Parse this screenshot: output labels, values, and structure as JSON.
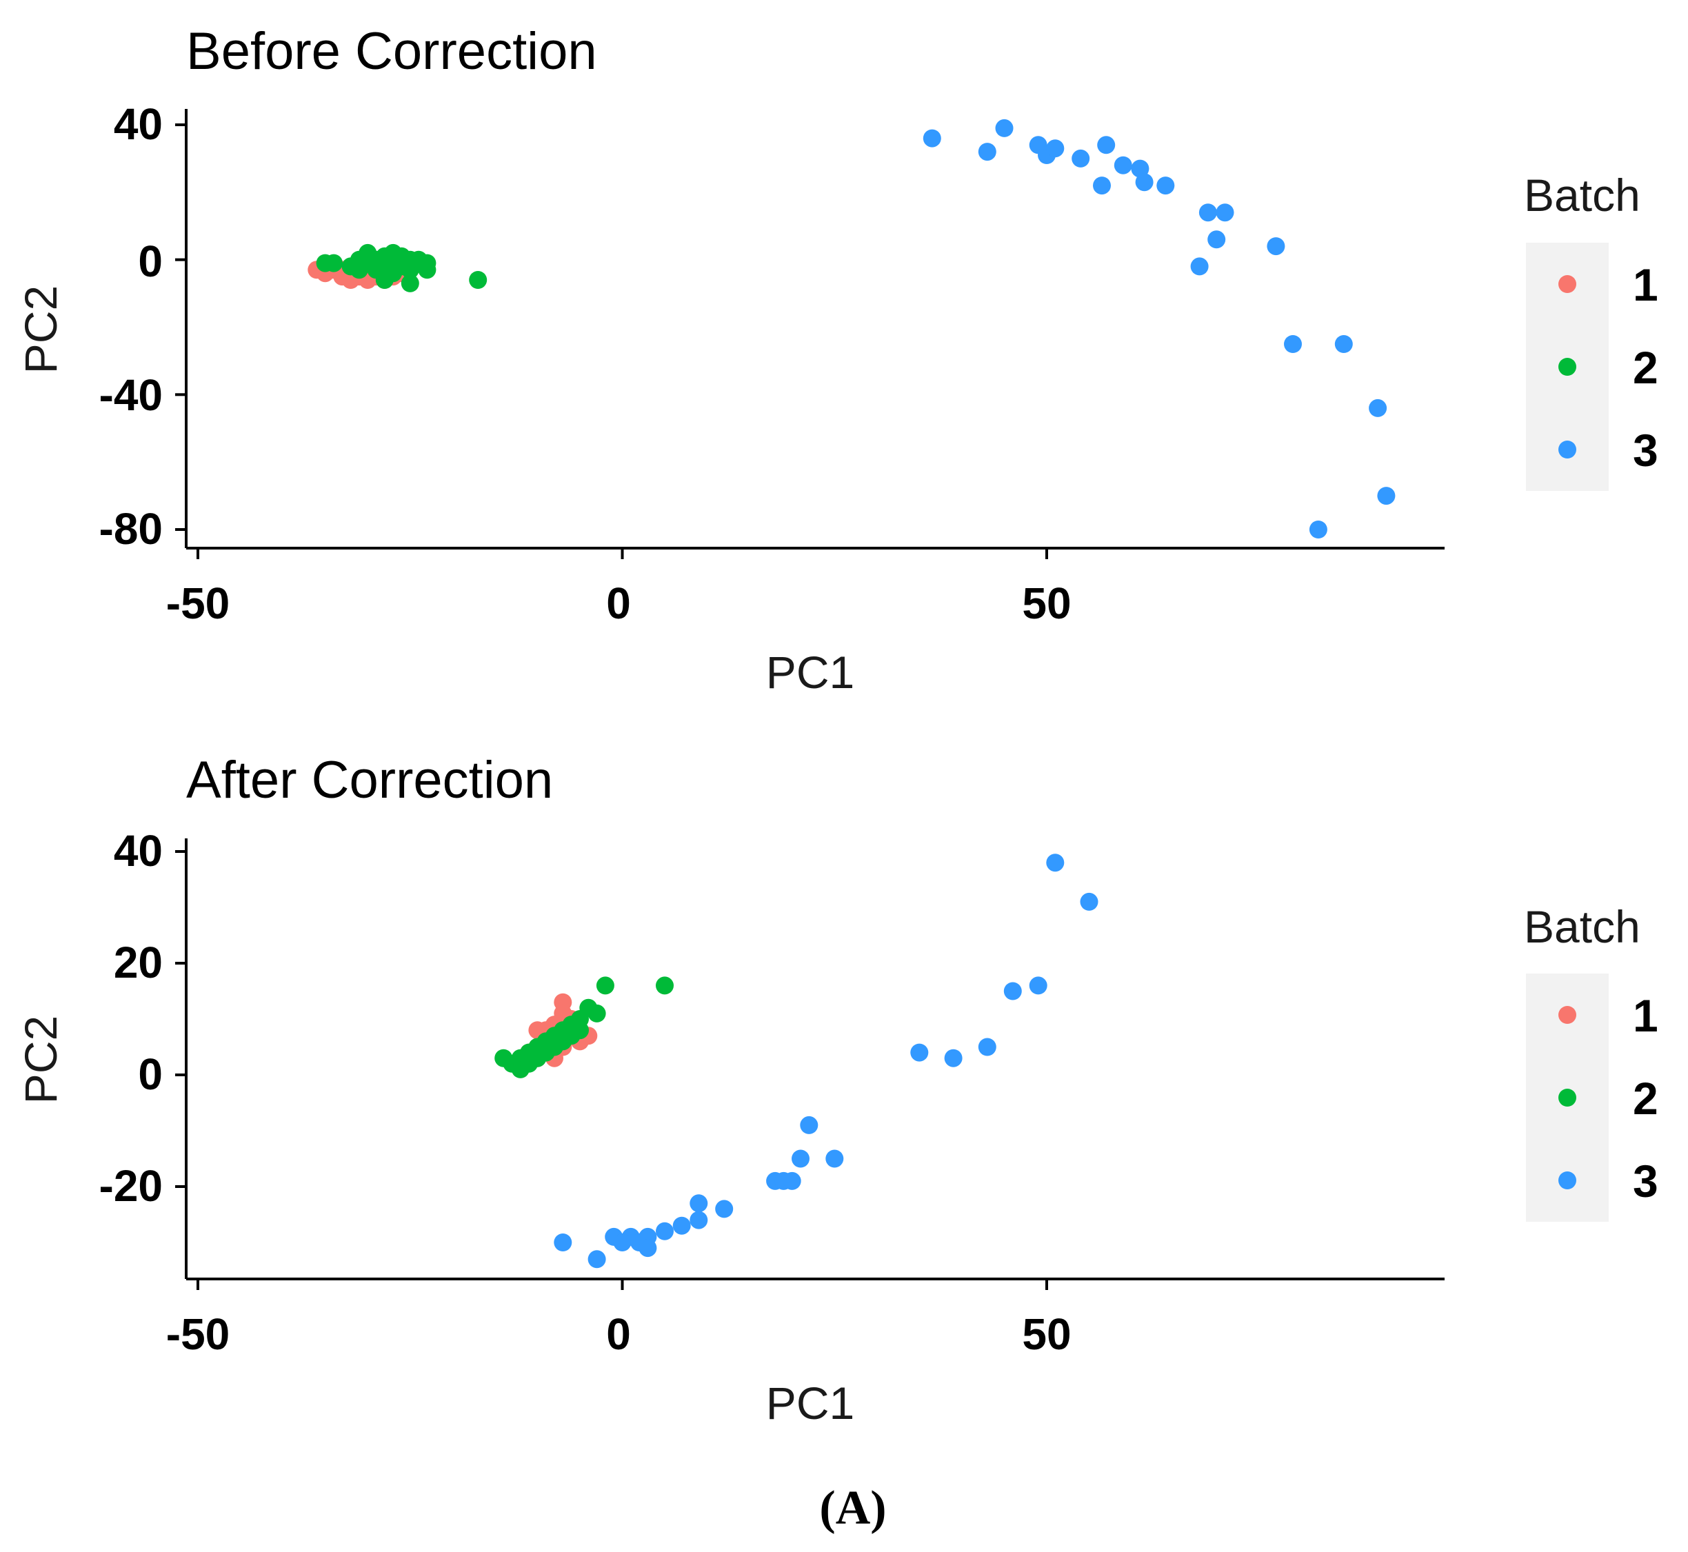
{
  "chart_data": [
    {
      "type": "scatter",
      "title": "Before Correction",
      "xlabel": "PC1",
      "ylabel": "PC2",
      "xlim": [
        -52,
        97
      ],
      "ylim": [
        -85,
        45
      ],
      "xticks": [
        -50,
        0,
        50
      ],
      "xtick_labels": [
        "-50",
        "0",
        "50"
      ],
      "yticks": [
        40,
        0,
        -40,
        -80
      ],
      "ytick_labels": [
        "40",
        "0",
        "-40",
        "-80"
      ],
      "grid": false,
      "legend": {
        "title": "Batch",
        "position": "right",
        "entries": [
          "1",
          "2",
          "3"
        ]
      },
      "series": [
        {
          "name": "1",
          "color": "#F8766D",
          "points": [
            [
              -36,
              -3
            ],
            [
              -35,
              -4
            ],
            [
              -34,
              -3
            ],
            [
              -33,
              -5
            ],
            [
              -33,
              -3
            ],
            [
              -32,
              -6
            ],
            [
              -32,
              -4
            ],
            [
              -31,
              -2
            ],
            [
              -31,
              -5
            ],
            [
              -30,
              -4
            ],
            [
              -30,
              -6
            ],
            [
              -29,
              -3
            ],
            [
              -29,
              -5
            ],
            [
              -28,
              -4
            ],
            [
              -28,
              -6
            ],
            [
              -27,
              -3
            ],
            [
              -27,
              -5
            ],
            [
              -26,
              -4
            ]
          ]
        },
        {
          "name": "2",
          "color": "#00BA38",
          "points": [
            [
              -35,
              -1
            ],
            [
              -34,
              -1
            ],
            [
              -32,
              -2
            ],
            [
              -31,
              0
            ],
            [
              -31,
              -3
            ],
            [
              -30,
              2
            ],
            [
              -30,
              -1
            ],
            [
              -29,
              0
            ],
            [
              -29,
              -3
            ],
            [
              -28,
              1
            ],
            [
              -28,
              -2
            ],
            [
              -28,
              -6
            ],
            [
              -27,
              0
            ],
            [
              -27,
              2
            ],
            [
              -27,
              -4
            ],
            [
              -26,
              1
            ],
            [
              -26,
              -2
            ],
            [
              -25,
              0
            ],
            [
              -25,
              -3
            ],
            [
              -24,
              0
            ],
            [
              -23,
              -1
            ],
            [
              -25,
              -7
            ],
            [
              -23,
              -3
            ],
            [
              -17,
              -6
            ]
          ]
        },
        {
          "name": "3",
          "color": "#3399FF",
          "points": [
            [
              36.5,
              36
            ],
            [
              43,
              32
            ],
            [
              45,
              39
            ],
            [
              49,
              34
            ],
            [
              50,
              31
            ],
            [
              51,
              33
            ],
            [
              54,
              30
            ],
            [
              57,
              34
            ],
            [
              59,
              28
            ],
            [
              61,
              27
            ],
            [
              56.5,
              22
            ],
            [
              61.5,
              23
            ],
            [
              64,
              22
            ],
            [
              69,
              14
            ],
            [
              71,
              14
            ],
            [
              70,
              6
            ],
            [
              68,
              -2
            ],
            [
              77,
              4
            ],
            [
              79,
              -25
            ],
            [
              85,
              -25
            ],
            [
              89,
              -44
            ],
            [
              90,
              -70
            ],
            [
              82,
              -80
            ]
          ]
        }
      ]
    },
    {
      "type": "scatter",
      "title": "After Correction",
      "xlabel": "PC1",
      "ylabel": "PC2",
      "xlim": [
        -52,
        97
      ],
      "ylim": [
        -36,
        42
      ],
      "xticks": [
        -50,
        0,
        50
      ],
      "xtick_labels": [
        "-50",
        "0",
        "50"
      ],
      "yticks": [
        40,
        20,
        0,
        -20
      ],
      "ytick_labels": [
        "40",
        "20",
        "0",
        "-20"
      ],
      "grid": false,
      "legend": {
        "title": "Batch",
        "position": "right",
        "entries": [
          "1",
          "2",
          "3"
        ]
      },
      "series": [
        {
          "name": "1",
          "color": "#F8766D",
          "points": [
            [
              -7,
              13
            ],
            [
              -7,
              11
            ],
            [
              -6,
              10
            ],
            [
              -8,
              9
            ],
            [
              -9,
              8
            ],
            [
              -10,
              8
            ],
            [
              -8,
              7
            ],
            [
              -6,
              7
            ],
            [
              -5,
              6
            ],
            [
              -4,
              7
            ],
            [
              -9,
              6
            ],
            [
              -10,
              5
            ],
            [
              -11,
              4
            ],
            [
              -9,
              4
            ],
            [
              -8,
              3
            ],
            [
              -10,
              3
            ],
            [
              -12,
              2
            ],
            [
              -7,
              5
            ]
          ]
        },
        {
          "name": "2",
          "color": "#00BA38",
          "points": [
            [
              -14,
              3
            ],
            [
              -13,
              2
            ],
            [
              -12,
              1
            ],
            [
              -12,
              3
            ],
            [
              -11,
              2
            ],
            [
              -11,
              4
            ],
            [
              -10,
              3
            ],
            [
              -10,
              5
            ],
            [
              -9,
              4
            ],
            [
              -9,
              6
            ],
            [
              -8,
              5
            ],
            [
              -8,
              7
            ],
            [
              -7,
              6
            ],
            [
              -7,
              8
            ],
            [
              -6,
              7
            ],
            [
              -6,
              9
            ],
            [
              -5,
              8
            ],
            [
              -5,
              10
            ],
            [
              -4,
              12
            ],
            [
              -3,
              11
            ],
            [
              -2,
              16
            ],
            [
              5,
              16
            ]
          ]
        },
        {
          "name": "3",
          "color": "#3399FF",
          "points": [
            [
              51,
              38
            ],
            [
              55,
              31
            ],
            [
              49,
              16
            ],
            [
              46,
              15
            ],
            [
              43,
              5
            ],
            [
              35,
              4
            ],
            [
              39,
              3
            ],
            [
              22,
              -9
            ],
            [
              21,
              -15
            ],
            [
              25,
              -15
            ],
            [
              18,
              -19
            ],
            [
              19,
              -19
            ],
            [
              20,
              -19
            ],
            [
              9,
              -23
            ],
            [
              12,
              -24
            ],
            [
              9,
              -26
            ],
            [
              7,
              -27
            ],
            [
              5,
              -28
            ],
            [
              3,
              -29
            ],
            [
              1,
              -29
            ],
            [
              -1,
              -29
            ],
            [
              0,
              -30
            ],
            [
              2,
              -30
            ],
            [
              3,
              -31
            ],
            [
              -7,
              -30
            ],
            [
              -3,
              -33
            ]
          ]
        }
      ]
    }
  ],
  "caption": "(A)"
}
